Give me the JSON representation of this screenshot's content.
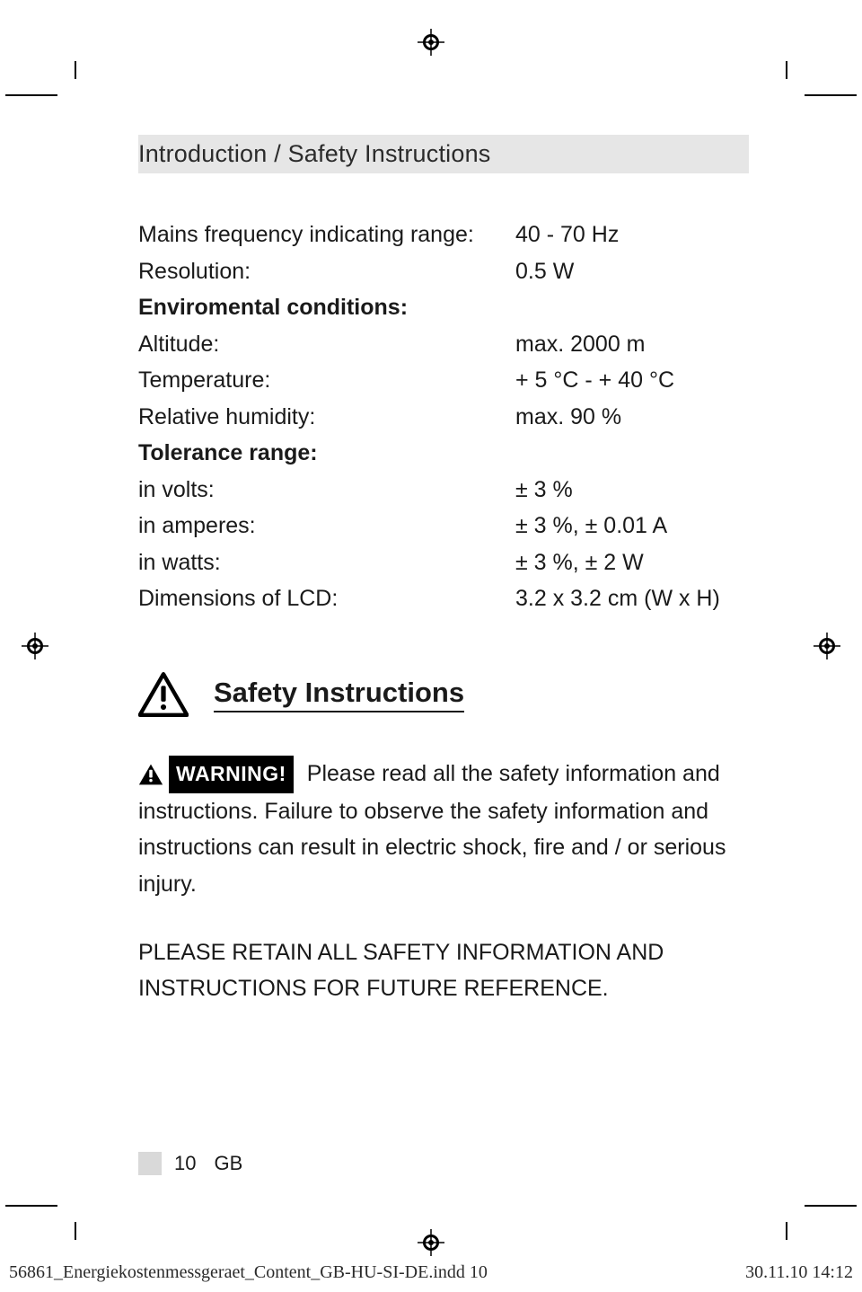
{
  "header": {
    "breadcrumb": "Introduction / Safety Instructions"
  },
  "specs": {
    "rows": [
      {
        "label": "Mains frequency indicating range:",
        "value": "40 - 70 Hz",
        "bold": false
      },
      {
        "label": "Resolution:",
        "value": "0.5 W",
        "bold": false
      },
      {
        "label": "Enviromental conditions:",
        "value": "",
        "bold": true
      },
      {
        "label": "Altitude:",
        "value": "max. 2000 m",
        "bold": false
      },
      {
        "label": "Temperature:",
        "value": "+ 5 °C - + 40 °C",
        "bold": false
      },
      {
        "label": "Relative humidity:",
        "value": "max. 90 %",
        "bold": false
      },
      {
        "label": "Tolerance range:",
        "value": "",
        "bold": true
      },
      {
        "label": "in volts:",
        "value": "± 3 %",
        "bold": false
      },
      {
        "label": "in amperes:",
        "value": "± 3 %, ± 0.01 A",
        "bold": false
      },
      {
        "label": "in watts:",
        "value": "± 3 %, ± 2 W",
        "bold": false
      },
      {
        "label": "Dimensions of LCD:",
        "value": "3.2 x 3.2 cm (W x H)",
        "bold": false
      }
    ]
  },
  "safety": {
    "title": "Safety Instructions",
    "warning_label": "WARNING!",
    "warning_text_1": " Please read all the safety information and instructions. Failure to observe the safety information and instructions can result in electric shock, fire and / or serious injury.",
    "retain_text": "PLEASE RETAIN ALL SAFETY INFORMATION AND INSTRUCTIONS FOR FUTURE REFERENCE."
  },
  "footer": {
    "page_number": "10",
    "lang": "GB",
    "file": "56861_Energiekostenmessgeraet_Content_GB-HU-SI-DE.indd   10",
    "timestamp": "30.11.10   14:12"
  },
  "colors": {
    "header_band": "#e6e6e6",
    "text": "#1a1a1a",
    "page_box": "#d9d9d9",
    "black": "#000000",
    "white": "#ffffff"
  }
}
